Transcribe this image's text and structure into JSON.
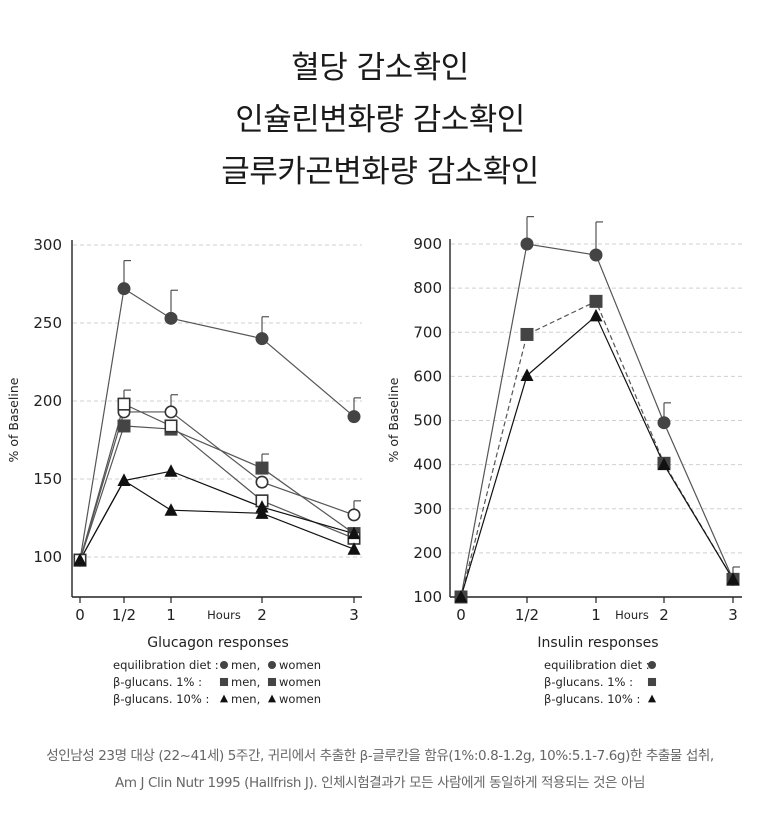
{
  "headlines": [
    "혈당 감소확인",
    "인슐린변화량 감소확인",
    "글루카곤변화량 감소확인"
  ],
  "chart_data": [
    {
      "type": "line",
      "title": "Glucagon responses",
      "xlabel": "Hours",
      "ylabel": "% of Baseline",
      "x_ticks": [
        "0",
        "1/2",
        "1",
        "2",
        "3"
      ],
      "x": [
        0,
        0.5,
        1,
        2,
        3
      ],
      "xlim": [
        0,
        3
      ],
      "ylim": [
        75,
        300
      ],
      "y_ticks": [
        100,
        150,
        200,
        250,
        300
      ],
      "grid": "horizontal dashed",
      "series": [
        {
          "name": "equilibration diet men",
          "marker": "filled-circle",
          "line": "solid",
          "values": [
            98,
            272,
            253,
            240,
            190
          ],
          "error": [
            null,
            18,
            18,
            14,
            12
          ]
        },
        {
          "name": "equilibration diet women",
          "marker": "open-circle",
          "line": "solid",
          "values": [
            98,
            193,
            193,
            148,
            127
          ],
          "error": [
            null,
            null,
            11,
            null,
            9
          ]
        },
        {
          "name": "β-glucans 1% men",
          "marker": "filled-square",
          "line": "solid",
          "values": [
            98,
            184,
            182,
            157,
            115
          ],
          "error": [
            null,
            null,
            null,
            9,
            null
          ]
        },
        {
          "name": "β-glucans 1% women",
          "marker": "open-square",
          "line": "solid",
          "values": [
            98,
            198,
            184,
            136,
            112
          ],
          "error": [
            null,
            9,
            null,
            null,
            null
          ]
        },
        {
          "name": "β-glucans 10% men",
          "marker": "filled-triangle",
          "line": "solid",
          "values": [
            98,
            149,
            130,
            128,
            105
          ],
          "error": [
            null,
            null,
            null,
            null,
            null
          ]
        },
        {
          "name": "β-glucans 10% women",
          "marker": "filled-triangle",
          "line": "solid",
          "values": [
            98,
            149,
            155,
            132,
            115
          ],
          "error": [
            null,
            null,
            null,
            null,
            null
          ]
        }
      ],
      "legend": [
        {
          "label": "equilibration diet :",
          "items": [
            "men,",
            "women"
          ],
          "symbol": "circle"
        },
        {
          "label": "β-glucans.      1% :",
          "items": [
            "men,",
            "women"
          ],
          "symbol": "square"
        },
        {
          "label": "β-glucans.    10% :",
          "items": [
            "men,",
            "women"
          ],
          "symbol": "triangle"
        }
      ]
    },
    {
      "type": "line",
      "title": "Insulin responses",
      "xlabel": "Hours",
      "ylabel": "% of Baseline",
      "x_ticks": [
        "0",
        "1/2",
        "1",
        "2",
        "3"
      ],
      "x": [
        0,
        0.5,
        1,
        2,
        3
      ],
      "xlim": [
        0,
        3
      ],
      "ylim": [
        100,
        900
      ],
      "y_ticks": [
        100,
        200,
        300,
        400,
        500,
        600,
        700,
        800,
        900
      ],
      "grid": "horizontal dashed",
      "series": [
        {
          "name": "equilibration diet",
          "marker": "filled-circle",
          "line": "solid",
          "values": [
            100,
            900,
            875,
            495,
            140
          ],
          "error": [
            null,
            62,
            75,
            45,
            28
          ]
        },
        {
          "name": "β-glucans 1%",
          "marker": "filled-square",
          "line": "dashed",
          "values": [
            100,
            695,
            770,
            403,
            140
          ],
          "error": [
            null,
            null,
            null,
            null,
            null
          ]
        },
        {
          "name": "β-glucans 10%",
          "marker": "filled-triangle",
          "line": "solid",
          "values": [
            100,
            602,
            737,
            400,
            140
          ],
          "error": [
            null,
            null,
            null,
            null,
            null
          ]
        }
      ],
      "legend": [
        {
          "label": "equilibration diet :",
          "symbol": "circle"
        },
        {
          "label": "β-glucans.      1% :",
          "symbol": "square"
        },
        {
          "label": "β-glucans.    10% :",
          "symbol": "triangle"
        }
      ]
    }
  ],
  "footnote": [
    "성인남성 23명 대상 (22~41세) 5주간, 귀리에서 추출한 β-글루칸을 함유(1%:0.8-1.2g, 10%:5.1-7.6g)한 추출물 섭취,",
    "Am J Clin Nutr 1995 (Hallfrish J). 인체시험결과가 모든 사람에게 동일하게 적용되는 것은 아님"
  ]
}
